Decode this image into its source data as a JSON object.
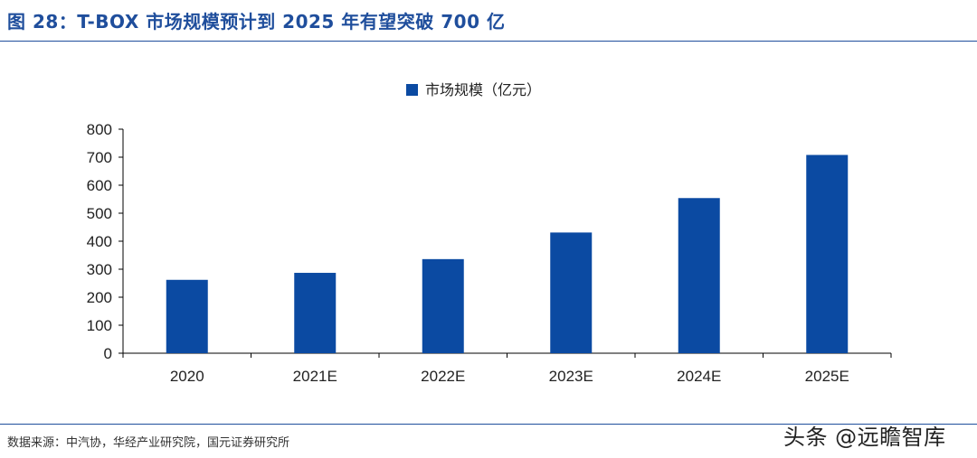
{
  "figure": {
    "title": "图 28：T-BOX 市场规模预计到 2025 年有望突破 700 亿",
    "source": "数据来源：中汽协，华经产业研究院，国元证券研究所",
    "watermark": "头条 @远瞻智库"
  },
  "colors": {
    "bar": "#0b4aa2",
    "title": "#1f4e9c",
    "rule": "#1f4e9c",
    "axis": "#000000",
    "text": "#222222"
  },
  "chart_data": {
    "type": "bar",
    "title": "",
    "categories": [
      "2020",
      "2021E",
      "2022E",
      "2023E",
      "2024E",
      "2025E"
    ],
    "series": [
      {
        "name": "市场规模（亿元）",
        "values": [
          262,
          287,
          336,
          431,
          554,
          708
        ]
      }
    ],
    "xlabel": "",
    "ylabel": "",
    "ylim": [
      0,
      800
    ],
    "yticks": [
      0,
      100,
      200,
      300,
      400,
      500,
      600,
      700,
      800
    ],
    "grid": false,
    "legend": "top-center"
  }
}
